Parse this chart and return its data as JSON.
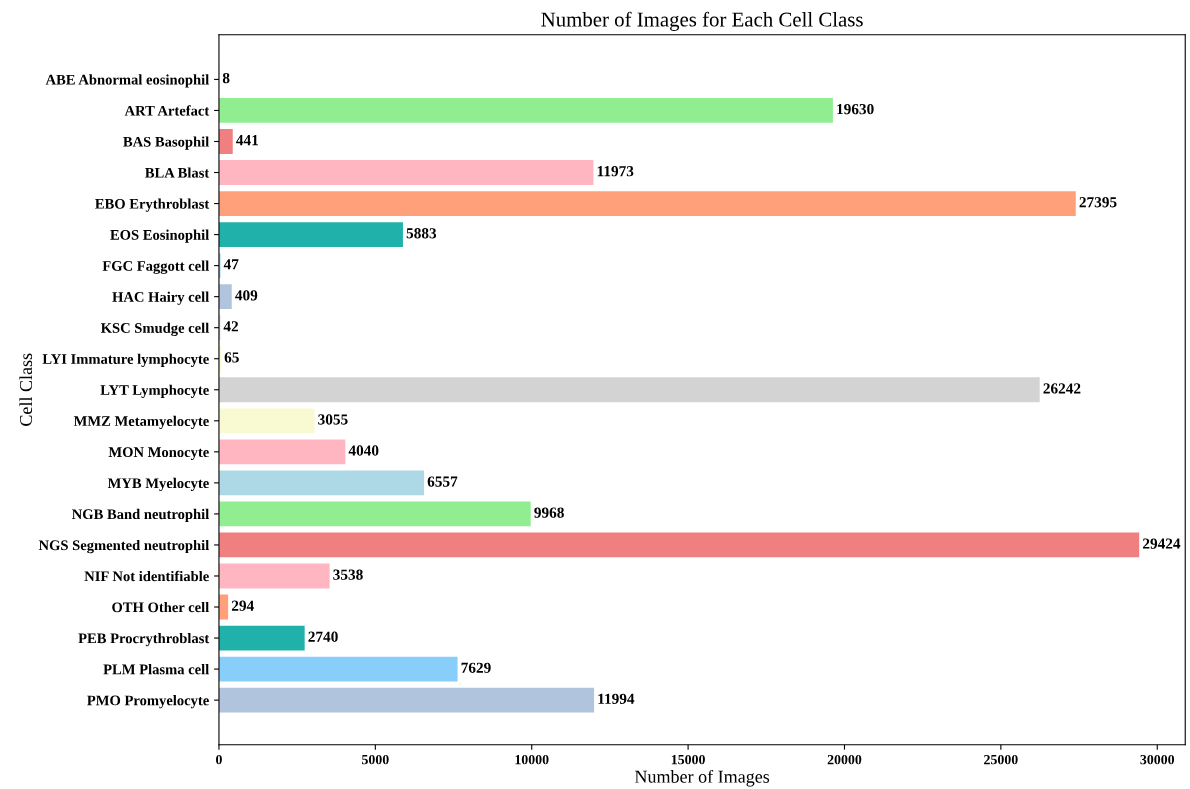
{
  "chart_data": {
    "type": "bar",
    "orientation": "horizontal",
    "title": "Number of Images for Each Cell Class",
    "xlabel": "Number of Images",
    "ylabel": "Cell Class",
    "categories": [
      "ABE Abnormal eosinophil",
      "ART Artefact",
      "BAS Basophil",
      "BLA Blast",
      "EBO Erythroblast",
      "EOS Eosinophil",
      "FGC Faggott cell",
      "HAC Hairy cell",
      "KSC Smudge cell",
      "LYI Immature lymphocyte",
      "LYT Lymphocyte",
      "MMZ Metamyelocyte",
      "MON Monocyte",
      "MYB Myelocyte",
      "NGB Band neutrophil",
      "NGS Segmented neutrophil",
      "NIF Not identifiable",
      "OTH Other cell",
      "PEB Procrythroblast",
      "PLM Plasma cell",
      "PMO Promyelocyte"
    ],
    "values": [
      8,
      19630,
      441,
      11973,
      27395,
      5883,
      47,
      409,
      42,
      65,
      26242,
      3055,
      4040,
      6557,
      9968,
      29424,
      3538,
      294,
      2740,
      7629,
      11994
    ],
    "colors": [
      "#add8e6",
      "#90ee90",
      "#f08080",
      "#ffb6c1",
      "#ffa07a",
      "#20b2aa",
      "#87cefa",
      "#b0c4de",
      "#d3d3d3",
      "#fafad2",
      "#d3d3d3",
      "#fafad2",
      "#ffb6c1",
      "#add8e6",
      "#90ee90",
      "#f08080",
      "#ffb6c1",
      "#ffa07a",
      "#20b2aa",
      "#87cefa",
      "#b0c4de"
    ],
    "data_labels": true,
    "xlim": [
      0,
      30895
    ],
    "xticks": [
      0,
      5000,
      10000,
      15000,
      20000,
      25000,
      30000
    ],
    "grid": false,
    "legend": false
  }
}
